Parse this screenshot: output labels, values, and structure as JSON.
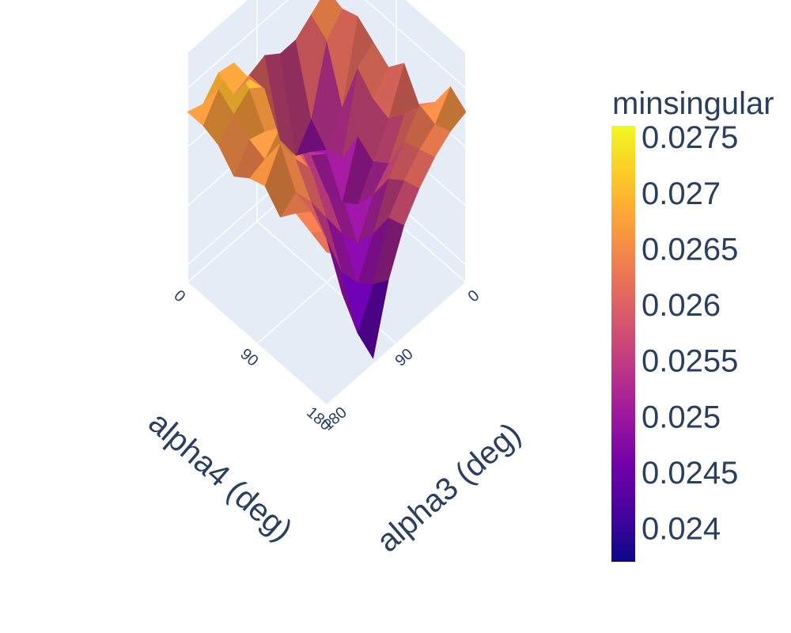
{
  "chart_data": {
    "type": "surface",
    "x_axis": {
      "label": "alpha3 (deg)",
      "ticks": [
        "0",
        "90",
        "180"
      ],
      "range": [
        0,
        180
      ]
    },
    "y_axis": {
      "label": "alpha4 (deg)",
      "ticks": [
        "0",
        "90",
        "180"
      ],
      "range": [
        0,
        180
      ]
    },
    "colorbar": {
      "title": "minsingular",
      "ticks": [
        "0.0275",
        "0.027",
        "0.0265",
        "0.026",
        "0.0255",
        "0.025",
        "0.0245",
        "0.024"
      ],
      "range": [
        0.0237,
        0.0276
      ],
      "colorscale": [
        "#0d0887",
        "#46039f",
        "#7201a8",
        "#9c179e",
        "#bd3786",
        "#d8576b",
        "#ed7953",
        "#fb9f3a",
        "#fdca26",
        "#f0f921"
      ]
    },
    "grid": true,
    "background": "#e5ecf6",
    "alpha3": [
      0,
      20,
      40,
      60,
      80,
      100,
      120,
      140,
      160,
      180
    ],
    "alpha4": [
      0,
      20,
      40,
      60,
      80,
      100,
      120,
      140,
      160,
      180
    ],
    "z": [
      [
        0.0266,
        0.0264,
        0.0262,
        0.0262,
        0.0264,
        0.0263,
        0.0262,
        0.0268,
        0.0265,
        0.0266
      ],
      [
        0.0265,
        0.0262,
        0.0251,
        0.0247,
        0.0252,
        0.0263,
        0.0267,
        0.0272,
        0.027,
        0.0266
      ],
      [
        0.0266,
        0.0253,
        0.0248,
        0.025,
        0.0258,
        0.0262,
        0.0268,
        0.027,
        0.0268,
        0.0265
      ],
      [
        0.0264,
        0.0262,
        0.0249,
        0.0252,
        0.0254,
        0.0259,
        0.0264,
        0.0265,
        0.0266,
        0.0262
      ],
      [
        0.0262,
        0.0259,
        0.0255,
        0.0246,
        0.025,
        0.0256,
        0.0262,
        0.0268,
        0.0265,
        0.0264
      ],
      [
        0.0265,
        0.0258,
        0.0253,
        0.0248,
        0.0252,
        0.0255,
        0.0261,
        0.0265,
        0.027,
        0.0265
      ],
      [
        0.026,
        0.0261,
        0.0255,
        0.0252,
        0.0246,
        0.025,
        0.0255,
        0.026,
        0.0264,
        0.0262
      ],
      [
        0.0263,
        0.0265,
        0.0261,
        0.0257,
        0.025,
        0.0244,
        0.0248,
        0.0256,
        0.0263,
        0.0265
      ],
      [
        0.0268,
        0.0264,
        0.0262,
        0.0259,
        0.0255,
        0.0246,
        0.024,
        0.0249,
        0.0262,
        0.0264
      ],
      [
        0.0266,
        0.0265,
        0.0263,
        0.026,
        0.0256,
        0.0249,
        0.0238,
        0.0246,
        0.026,
        0.0263
      ]
    ]
  }
}
